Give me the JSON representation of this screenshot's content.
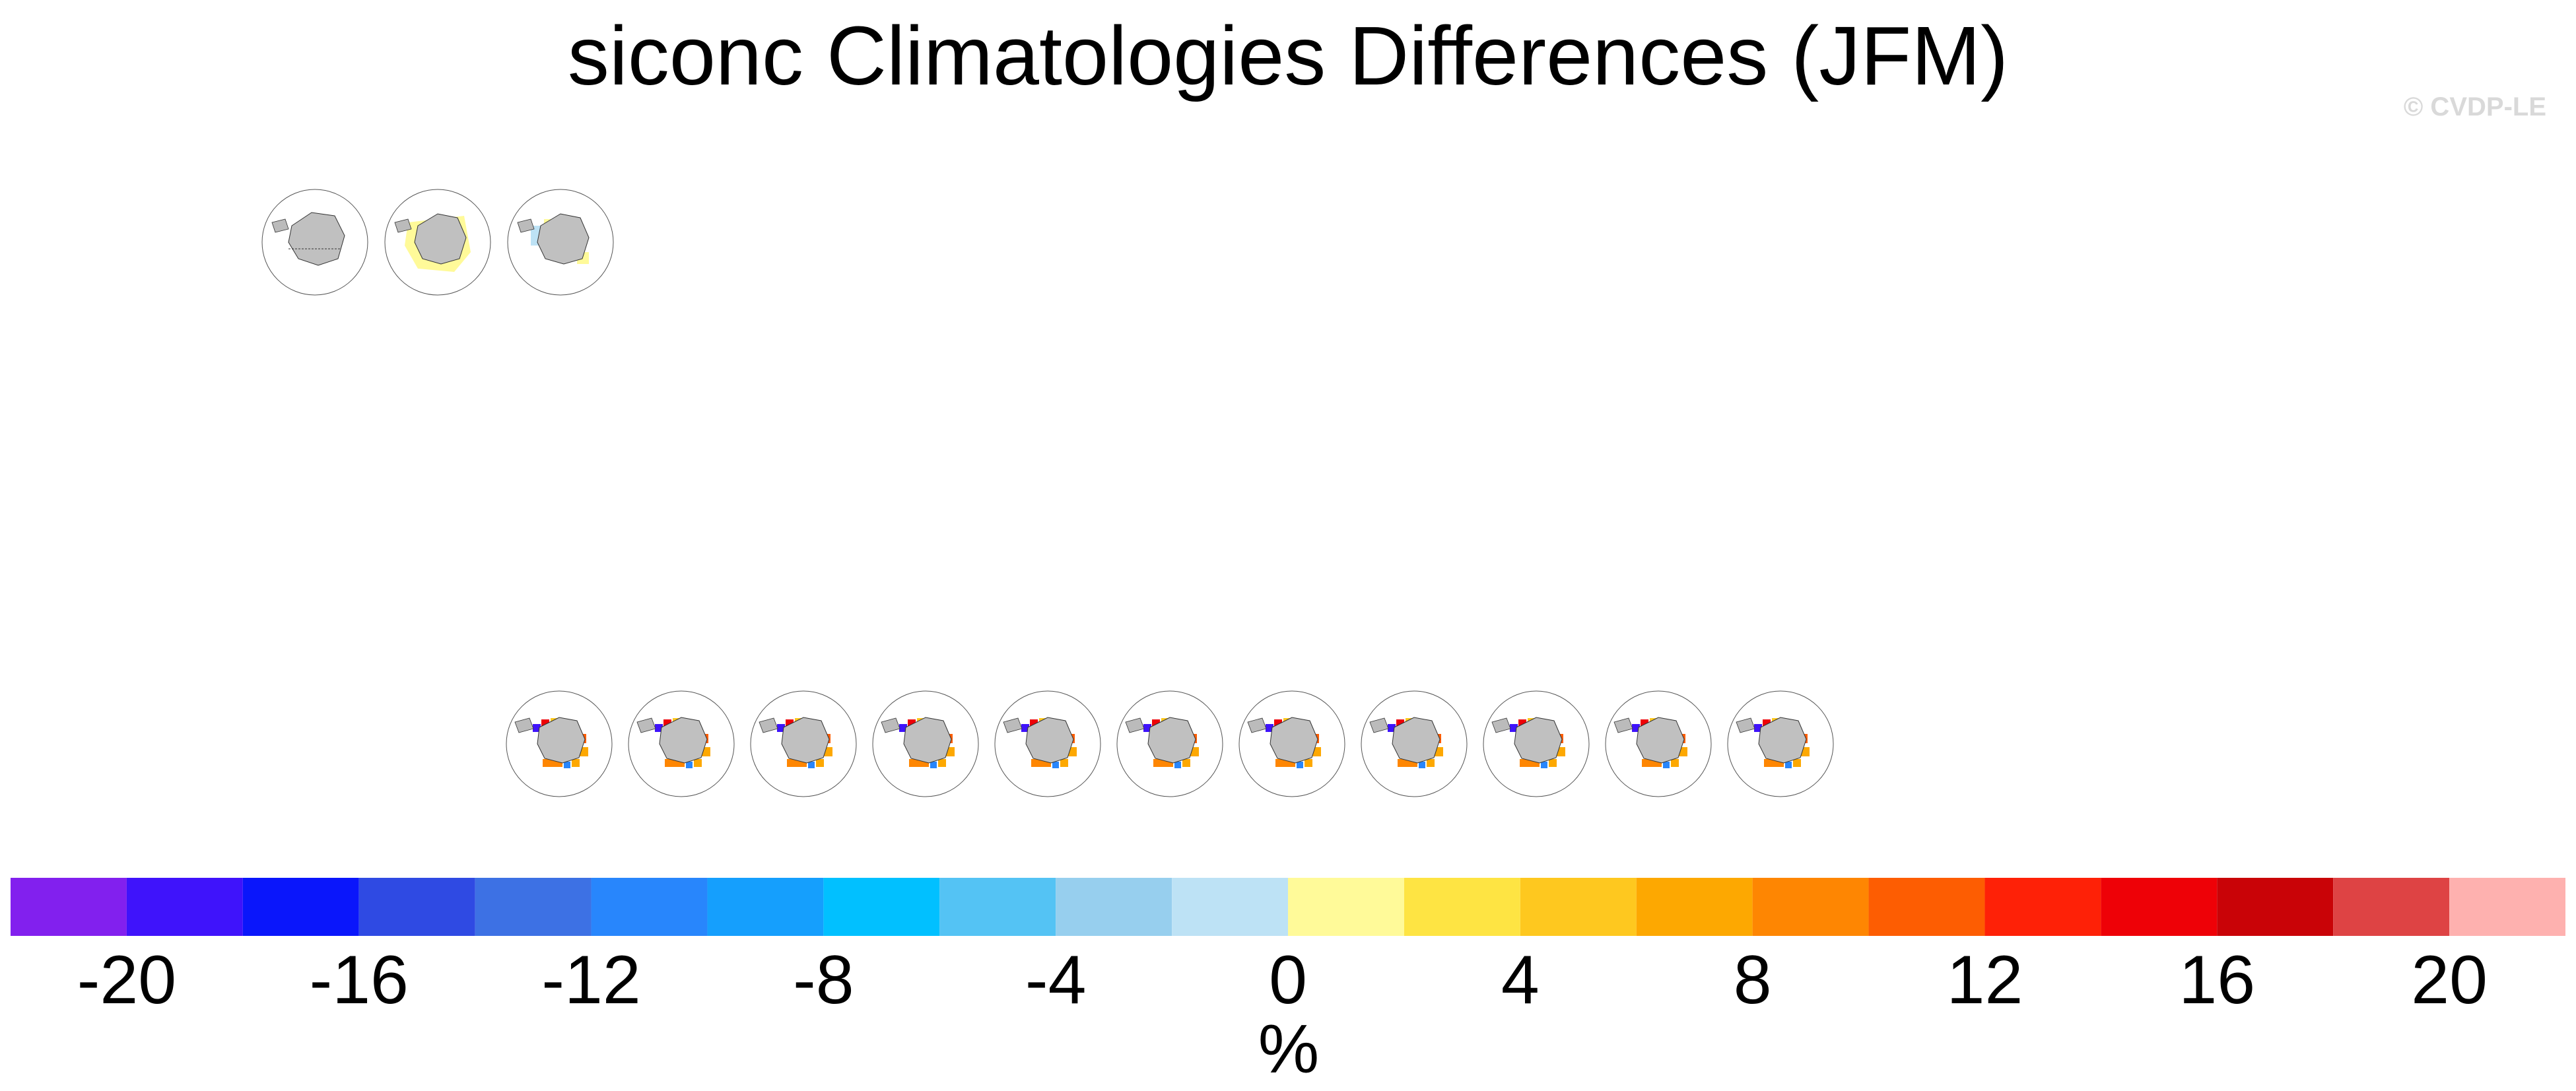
{
  "title": "siconc Climatologies Differences (JFM)",
  "watermark": "© CVDP-LE",
  "colorbar": {
    "unit": "%",
    "levels": [
      -22,
      -20,
      -18,
      -16,
      -14,
      -12,
      -10,
      -8,
      -6,
      -4,
      -2,
      0,
      2,
      4,
      6,
      8,
      10,
      12,
      14,
      16,
      18,
      20,
      22
    ],
    "colors": [
      "#8220ee",
      "#3f13fb",
      "#0a16fb",
      "#2f4ae3",
      "#3d71e4",
      "#2886fc",
      "#159ffd",
      "#01c0ff",
      "#54c3f4",
      "#97cfee",
      "#bde2f5",
      "#fffa99",
      "#fee443",
      "#fec81f",
      "#fda801",
      "#fe8602",
      "#fd5d02",
      "#fe2107",
      "#ee0107",
      "#c90307",
      "#de4344",
      "#feb1af"
    ],
    "tick_labels": [
      "-20",
      "-16",
      "-12",
      "-8",
      "-4",
      "0",
      "4",
      "8",
      "12",
      "16",
      "20"
    ]
  },
  "chart_data": {
    "type": "heatmap",
    "title": "siconc Climatologies Differences (JFM)",
    "variable": "siconc",
    "season": "JFM",
    "colorbar_range": [
      -22,
      22
    ],
    "colorbar_unit": "%",
    "rows": [
      {
        "row": 1,
        "panel_count": 3
      },
      {
        "row": 2,
        "panel_count": 11
      }
    ]
  }
}
